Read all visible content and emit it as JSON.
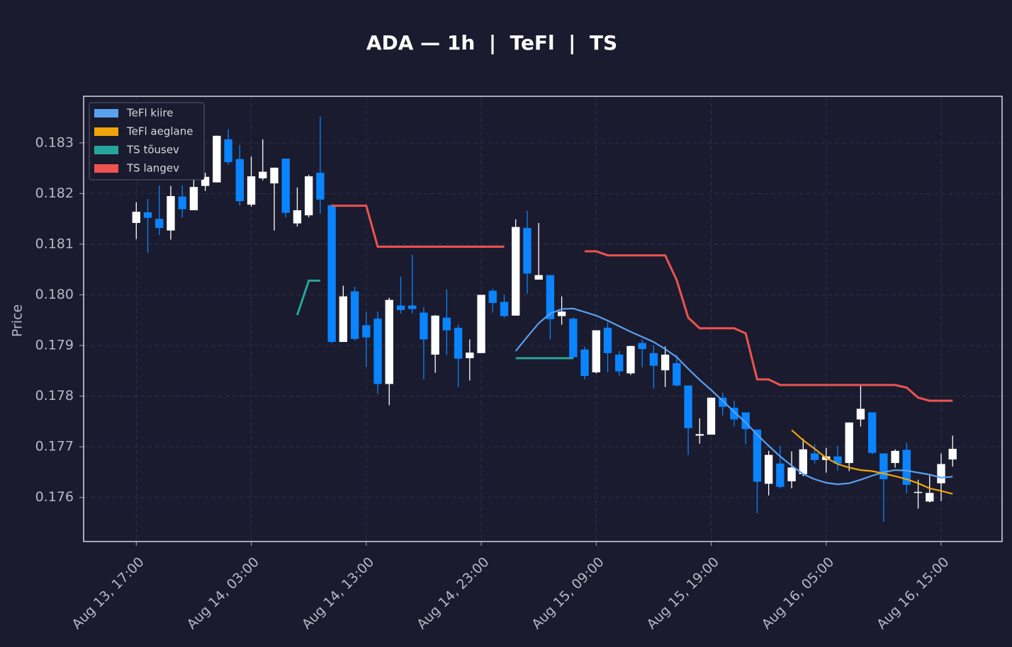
{
  "chart_data": {
    "type": "candlestick",
    "title": "ADA — 1h  |  TeFl  |  TS",
    "y_label": "Price",
    "x": [
      "Aug 13, 17:00",
      "Aug 13, 18:00",
      "Aug 13, 19:00",
      "Aug 13, 20:00",
      "Aug 13, 21:00",
      "Aug 13, 22:00",
      "Aug 13, 23:00",
      "Aug 14, 00:00",
      "Aug 14, 01:00",
      "Aug 14, 02:00",
      "Aug 14, 03:00",
      "Aug 14, 04:00",
      "Aug 14, 05:00",
      "Aug 14, 06:00",
      "Aug 14, 07:00",
      "Aug 14, 08:00",
      "Aug 14, 09:00",
      "Aug 14, 10:00",
      "Aug 14, 11:00",
      "Aug 14, 12:00",
      "Aug 14, 13:00",
      "Aug 14, 14:00",
      "Aug 14, 15:00",
      "Aug 14, 16:00",
      "Aug 14, 17:00",
      "Aug 14, 18:00",
      "Aug 14, 19:00",
      "Aug 14, 20:00",
      "Aug 14, 21:00",
      "Aug 14, 22:00",
      "Aug 14, 23:00",
      "Aug 15, 00:00",
      "Aug 15, 01:00",
      "Aug 15, 02:00",
      "Aug 15, 03:00",
      "Aug 15, 04:00",
      "Aug 15, 05:00",
      "Aug 15, 06:00",
      "Aug 15, 07:00",
      "Aug 15, 08:00",
      "Aug 15, 09:00",
      "Aug 15, 10:00",
      "Aug 15, 11:00",
      "Aug 15, 12:00",
      "Aug 15, 13:00",
      "Aug 15, 14:00",
      "Aug 15, 15:00",
      "Aug 15, 16:00",
      "Aug 15, 17:00",
      "Aug 15, 18:00",
      "Aug 15, 19:00",
      "Aug 15, 20:00",
      "Aug 15, 21:00",
      "Aug 15, 22:00",
      "Aug 15, 23:00",
      "Aug 16, 00:00",
      "Aug 16, 01:00",
      "Aug 16, 02:00",
      "Aug 16, 03:00",
      "Aug 16, 04:00",
      "Aug 16, 05:00",
      "Aug 16, 06:00",
      "Aug 16, 07:00",
      "Aug 16, 08:00",
      "Aug 16, 09:00",
      "Aug 16, 10:00",
      "Aug 16, 11:00",
      "Aug 16, 12:00",
      "Aug 16, 13:00",
      "Aug 16, 14:00",
      "Aug 16, 15:00",
      "Aug 16, 16:00"
    ],
    "open": [
      0.18142,
      0.18163,
      0.1815,
      0.18127,
      0.18194,
      0.18167,
      0.18215,
      0.18222,
      0.18307,
      0.18268,
      0.18178,
      0.1823,
      0.1822,
      0.18269,
      0.18141,
      0.18157,
      0.18241,
      0.18177,
      0.17907,
      0.18007,
      0.1794,
      0.17953,
      0.17824,
      0.17979,
      0.17979,
      0.17965,
      0.17882,
      0.17955,
      0.17935,
      0.17875,
      0.17885,
      0.18008,
      0.17986,
      0.17959,
      0.18132,
      0.1803,
      0.18039,
      0.17958,
      0.17953,
      0.17892,
      0.17847,
      0.17935,
      0.17882,
      0.17845,
      0.17905,
      0.17885,
      0.17851,
      0.17865,
      0.17821,
      0.17722,
      0.17724,
      0.17797,
      0.17777,
      0.17768,
      0.17734,
      0.17627,
      0.17667,
      0.17632,
      0.17646,
      0.17687,
      0.17674,
      0.17681,
      0.17668,
      0.17754,
      0.17768,
      0.17687,
      0.17668,
      0.17694,
      0.17609,
      0.17592,
      0.17628,
      0.17675
    ],
    "high": [
      0.18183,
      0.18189,
      0.18216,
      0.18215,
      0.18216,
      0.18266,
      0.18241,
      0.18314,
      0.18327,
      0.18296,
      0.18273,
      0.18307,
      0.18251,
      0.18269,
      0.18212,
      0.18237,
      0.18352,
      0.1818,
      0.18018,
      0.18016,
      0.17966,
      0.17967,
      0.17994,
      0.18036,
      0.18079,
      0.17976,
      0.1796,
      0.18011,
      0.17941,
      0.17912,
      0.18,
      0.18012,
      0.18,
      0.18149,
      0.18166,
      0.18142,
      0.18039,
      0.17997,
      0.17956,
      0.17898,
      0.1793,
      0.17946,
      0.17889,
      0.17899,
      0.17912,
      0.179,
      0.17898,
      0.17881,
      0.17821,
      0.17756,
      0.17797,
      0.17807,
      0.17791,
      0.17768,
      0.17734,
      0.17692,
      0.17702,
      0.17691,
      0.17716,
      0.17705,
      0.17698,
      0.17702,
      0.17748,
      0.17821,
      0.17768,
      0.17687,
      0.17695,
      0.17708,
      0.17635,
      0.17643,
      0.17687,
      0.17722
    ],
    "low": [
      0.1811,
      0.18083,
      0.18118,
      0.18109,
      0.18152,
      0.18167,
      0.18205,
      0.18222,
      0.18257,
      0.18176,
      0.18174,
      0.18226,
      0.18127,
      0.18153,
      0.18135,
      0.18153,
      0.1816,
      0.17905,
      0.17907,
      0.1791,
      0.17858,
      0.17804,
      0.17782,
      0.17963,
      0.17963,
      0.17833,
      0.17846,
      0.17881,
      0.17818,
      0.17831,
      0.17885,
      0.17965,
      0.17955,
      0.17959,
      0.18002,
      0.1803,
      0.17912,
      0.17941,
      0.17874,
      0.17833,
      0.17845,
      0.17847,
      0.1784,
      0.17842,
      0.17857,
      0.17815,
      0.17818,
      0.17819,
      0.17684,
      0.17706,
      0.17724,
      0.17762,
      0.1774,
      0.17705,
      0.17569,
      0.17604,
      0.17618,
      0.17618,
      0.17642,
      0.17667,
      0.17649,
      0.17653,
      0.17652,
      0.1774,
      0.17685,
      0.17552,
      0.17659,
      0.17608,
      0.17578,
      0.1759,
      0.17593,
      0.17661
    ],
    "close": [
      0.18164,
      0.18152,
      0.18132,
      0.18195,
      0.18169,
      0.18213,
      0.18233,
      0.18314,
      0.18262,
      0.18185,
      0.18234,
      0.18243,
      0.18251,
      0.18162,
      0.18167,
      0.18234,
      0.18188,
      0.17907,
      0.17997,
      0.17913,
      0.17916,
      0.17824,
      0.1799,
      0.1797,
      0.17972,
      0.17912,
      0.17959,
      0.1793,
      0.17874,
      0.17886,
      0.18,
      0.17984,
      0.17958,
      0.18134,
      0.18042,
      0.18039,
      0.17952,
      0.17967,
      0.17877,
      0.1784,
      0.1793,
      0.17885,
      0.17849,
      0.17899,
      0.17893,
      0.1786,
      0.17882,
      0.17821,
      0.17737,
      0.17725,
      0.17797,
      0.17779,
      0.17754,
      0.17735,
      0.17631,
      0.17684,
      0.17621,
      0.17659,
      0.17695,
      0.17674,
      0.17681,
      0.17667,
      0.17748,
      0.17775,
      0.17688,
      0.17636,
      0.17692,
      0.17625,
      0.17611,
      0.17609,
      0.17666,
      0.17696
    ],
    "up_color": "#ffffff",
    "down_color": "#0a84ff",
    "overlays": [
      {
        "name": "TeFl kiire",
        "color": "#5aa0f0",
        "values": [
          null,
          null,
          null,
          null,
          null,
          null,
          null,
          null,
          null,
          null,
          null,
          null,
          null,
          null,
          null,
          null,
          null,
          null,
          null,
          null,
          null,
          null,
          null,
          null,
          null,
          null,
          null,
          null,
          null,
          null,
          null,
          null,
          null,
          0.17889,
          0.17917,
          0.17944,
          0.17963,
          0.17972,
          0.17973,
          0.17966,
          0.17959,
          0.17949,
          0.17938,
          0.17927,
          0.17917,
          0.17907,
          0.17893,
          0.17877,
          0.17854,
          0.17832,
          0.17812,
          0.17791,
          0.17769,
          0.17748,
          0.17724,
          0.17702,
          0.17681,
          0.17663,
          0.17646,
          0.17636,
          0.17629,
          0.17626,
          0.17628,
          0.17635,
          0.17643,
          0.1765,
          0.17654,
          0.17653,
          0.17649,
          0.17645,
          0.17639,
          0.17641
        ]
      },
      {
        "name": "TeFl aeglane",
        "color": "#f0a30a",
        "values": [
          null,
          null,
          null,
          null,
          null,
          null,
          null,
          null,
          null,
          null,
          null,
          null,
          null,
          null,
          null,
          null,
          null,
          null,
          null,
          null,
          null,
          null,
          null,
          null,
          null,
          null,
          null,
          null,
          null,
          null,
          null,
          null,
          null,
          null,
          null,
          null,
          null,
          null,
          null,
          null,
          null,
          null,
          null,
          null,
          null,
          null,
          null,
          null,
          null,
          null,
          null,
          null,
          null,
          null,
          null,
          null,
          null,
          0.17733,
          0.17713,
          0.17696,
          0.17678,
          0.17666,
          0.17659,
          0.17654,
          0.17652,
          0.17647,
          0.17642,
          0.17636,
          0.17628,
          0.17618,
          0.17613,
          0.17607
        ]
      },
      {
        "name": "TS tõusev",
        "color": "#26a69a",
        "values": [
          null,
          null,
          null,
          null,
          null,
          null,
          null,
          null,
          null,
          null,
          null,
          null,
          null,
          null,
          0.1796,
          0.18028,
          0.18028,
          null,
          null,
          null,
          null,
          null,
          null,
          null,
          null,
          null,
          null,
          null,
          null,
          null,
          null,
          null,
          null,
          0.17875,
          0.17875,
          0.17875,
          0.17875,
          0.17875,
          0.17875,
          null,
          null,
          null,
          null,
          null,
          null,
          null,
          null,
          null,
          null,
          null,
          null,
          null,
          null,
          null,
          null,
          null,
          null,
          null,
          null,
          null,
          null,
          null,
          null,
          null,
          null,
          null,
          null,
          null,
          null,
          null,
          null,
          null
        ]
      },
      {
        "name": "TS langev",
        "color": "#ef5350",
        "values": [
          null,
          null,
          null,
          null,
          null,
          null,
          null,
          null,
          null,
          null,
          null,
          null,
          null,
          null,
          null,
          null,
          null,
          0.18176,
          0.18176,
          0.18176,
          0.18176,
          0.18095,
          0.18095,
          0.18095,
          0.18095,
          0.18095,
          0.18095,
          0.18095,
          0.18095,
          0.18095,
          0.18095,
          0.18095,
          0.18095,
          null,
          null,
          null,
          null,
          null,
          null,
          0.18086,
          0.18086,
          0.18078,
          0.18078,
          0.18078,
          0.18078,
          0.18078,
          0.18078,
          0.18029,
          0.17955,
          0.17934,
          0.17934,
          0.17934,
          0.17934,
          0.17924,
          0.17833,
          0.17833,
          0.17822,
          0.17822,
          0.17822,
          0.17822,
          0.17822,
          0.17822,
          0.17822,
          0.17822,
          0.17822,
          0.17822,
          0.17822,
          0.17817,
          0.17797,
          0.17791,
          0.17791,
          0.17791
        ]
      }
    ],
    "ylim": [
      0.17513,
      0.18392
    ],
    "yticks": [
      0.176,
      0.177,
      0.178,
      0.179,
      {
        "value": 0.18,
        "label": "0.180"
      },
      0.181,
      0.182,
      0.183
    ],
    "xticks": [
      "Aug 13, 17:00",
      "Aug 14, 03:00",
      "Aug 14, 13:00",
      "Aug 14, 23:00",
      "Aug 15, 09:00",
      "Aug 15, 19:00",
      "Aug 16, 05:00",
      "Aug 16, 15:00"
    ],
    "grid": true,
    "legend": "upper left"
  }
}
